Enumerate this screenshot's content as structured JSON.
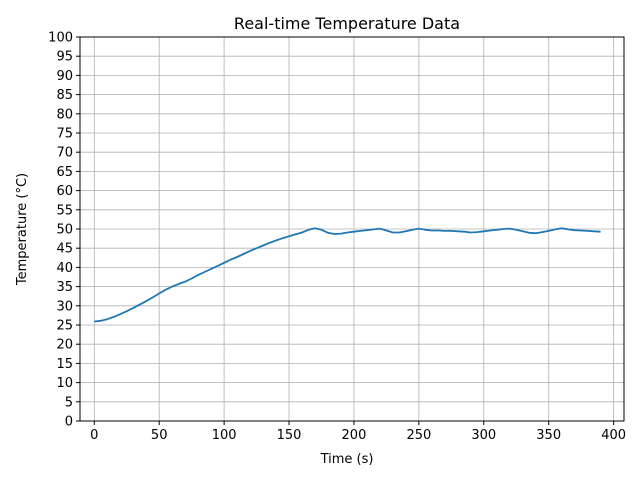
{
  "chart_data": {
    "type": "line",
    "title": "Real-time Temperature Data",
    "xlabel": "Time (s)",
    "ylabel": "Temperature (°C)",
    "xlim": [
      -11,
      408
    ],
    "ylim": [
      0,
      100
    ],
    "xticks": [
      0,
      50,
      100,
      150,
      200,
      250,
      300,
      350,
      400
    ],
    "yticks": [
      0,
      5,
      10,
      15,
      20,
      25,
      30,
      35,
      40,
      45,
      50,
      55,
      60,
      65,
      70,
      75,
      80,
      85,
      90,
      95,
      100
    ],
    "grid": true,
    "series": [
      {
        "color": "#1f77b4",
        "x": [
          0,
          5,
          10,
          15,
          20,
          25,
          30,
          35,
          40,
          45,
          50,
          55,
          60,
          65,
          70,
          75,
          80,
          85,
          90,
          95,
          100,
          105,
          110,
          115,
          120,
          125,
          130,
          135,
          140,
          145,
          150,
          155,
          160,
          165,
          170,
          175,
          180,
          185,
          190,
          195,
          200,
          205,
          210,
          215,
          220,
          225,
          230,
          235,
          240,
          245,
          250,
          255,
          260,
          265,
          270,
          275,
          280,
          285,
          290,
          295,
          300,
          305,
          310,
          315,
          320,
          325,
          330,
          335,
          340,
          345,
          350,
          355,
          360,
          365,
          370,
          375,
          380,
          385,
          390
        ],
        "values": [
          25.9,
          26.1,
          26.5,
          27.1,
          27.8,
          28.6,
          29.4,
          30.3,
          31.2,
          32.2,
          33.2,
          34.2,
          35.0,
          35.7,
          36.3,
          37.1,
          38.0,
          38.8,
          39.6,
          40.4,
          41.2,
          42.0,
          42.7,
          43.5,
          44.3,
          45.0,
          45.7,
          46.4,
          47.0,
          47.6,
          48.1,
          48.6,
          49.1,
          49.8,
          50.2,
          49.8,
          49.0,
          48.7,
          48.8,
          49.1,
          49.3,
          49.5,
          49.7,
          49.9,
          50.1,
          49.6,
          49.1,
          49.1,
          49.4,
          49.8,
          50.1,
          49.8,
          49.6,
          49.6,
          49.5,
          49.5,
          49.4,
          49.3,
          49.1,
          49.2,
          49.4,
          49.6,
          49.8,
          50.0,
          50.1,
          49.8,
          49.4,
          49.0,
          48.9,
          49.2,
          49.5,
          49.9,
          50.2,
          49.9,
          49.7,
          49.6,
          49.5,
          49.4,
          49.3
        ]
      }
    ]
  }
}
